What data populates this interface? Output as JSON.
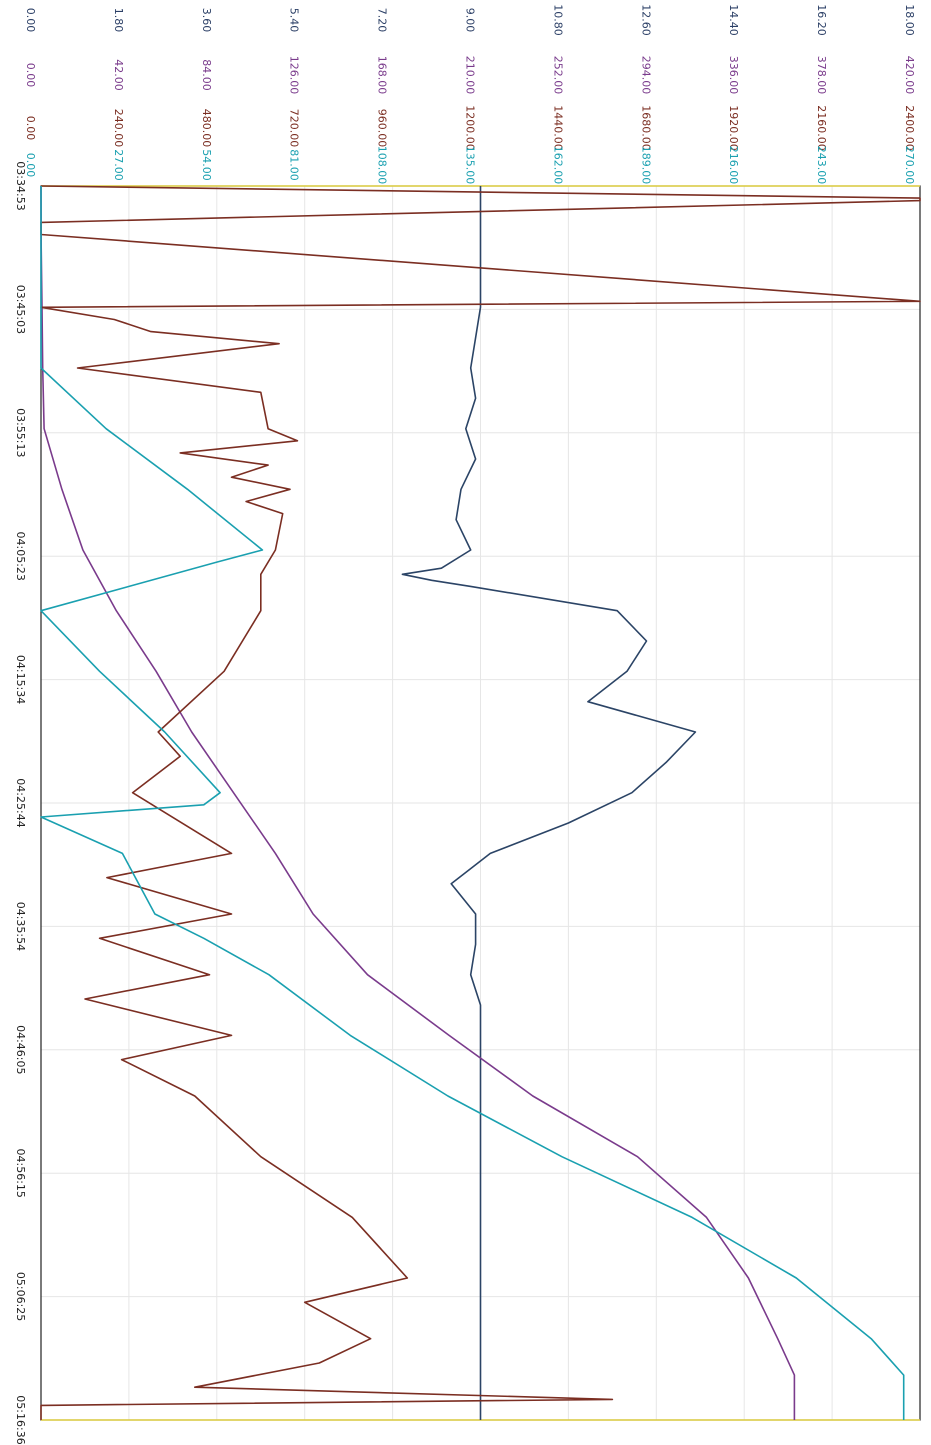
{
  "chart_data": {
    "type": "line",
    "orientation": "rotated 90 degrees clockwise (time axis runs top-to-bottom along the left edge, value axes along the top)",
    "title": "",
    "x_ticks": [
      "03:34:53",
      "03:45:03",
      "03:55:13",
      "04:05:23",
      "04:15:34",
      "04:25:44",
      "04:35:54",
      "04:46:05",
      "04:56:15",
      "05:06:25",
      "05:16:36"
    ],
    "y_axes": [
      {
        "name": "axis1",
        "color": "#2b3f66",
        "ticks": [
          "0.00",
          "1.80",
          "3.60",
          "5.40",
          "7.20",
          "9.00",
          "10.80",
          "12.60",
          "14.40",
          "16.20",
          "18.00"
        ]
      },
      {
        "name": "axis2",
        "color": "#7a3b8c",
        "ticks": [
          "0.00",
          "42.00",
          "84.00",
          "126.00",
          "168.00",
          "210.00",
          "252.00",
          "294.00",
          "336.00",
          "378.00",
          "420.00"
        ]
      },
      {
        "name": "axis3",
        "color": "#7b2e22",
        "ticks": [
          "0.00",
          "240.00",
          "480.00",
          "720.00",
          "960.00",
          "1200.00",
          "1440.00",
          "1680.00",
          "1920.00",
          "2160.00",
          "2400.00"
        ]
      },
      {
        "name": "axis4",
        "color": "#1aa0b0",
        "ticks": [
          "0.00",
          "27.00",
          "54.00",
          "81.00",
          "108.00",
          "135.00",
          "162.00",
          "189.00",
          "216.00",
          "243.00",
          "270.00"
        ]
      }
    ],
    "grid": true,
    "series": [
      {
        "color": "#2b4466",
        "x_min": [
          0,
          10,
          12.5,
          15,
          17.5,
          20,
          22.5,
          25,
          27.5,
          30,
          31.5,
          32,
          32.5,
          33,
          35,
          37.5,
          40,
          42.5,
          45,
          47.5,
          50,
          52.5,
          55,
          57.5,
          60,
          62.5,
          65,
          67.5,
          70,
          75,
          80,
          85,
          90,
          95,
          100,
          101.7
        ],
        "y": [
          9.0,
          9.0,
          8.9,
          8.8,
          8.9,
          8.7,
          8.9,
          8.6,
          8.5,
          8.8,
          8.2,
          7.4,
          8.0,
          8.8,
          11.8,
          12.4,
          12.0,
          11.2,
          13.4,
          12.8,
          12.1,
          10.8,
          9.2,
          8.4,
          8.9,
          8.9,
          8.8,
          9.0,
          9.0,
          9.0,
          9.0,
          9.0,
          9.0,
          9.0,
          9.0,
          9.0
        ]
      },
      {
        "color": "#7a3b8c",
        "x_min": [
          0,
          5,
          10,
          15,
          20,
          25,
          30,
          35,
          40,
          45,
          50,
          55,
          60,
          65,
          70,
          75,
          80,
          85,
          90,
          95,
          98,
          101.7
        ],
        "y": [
          0,
          0.1,
          0.5,
          0.8,
          1.5,
          10,
          20,
          36,
          55,
          72,
          92,
          112,
          130,
          156,
          195,
          235,
          285,
          318,
          338,
          352,
          360,
          360
        ]
      },
      {
        "color": "#7b2e22",
        "x_min": [
          0,
          1,
          1.2,
          3,
          4,
          9.5,
          10,
          11,
          12,
          13,
          15,
          17,
          20,
          21,
          22,
          23,
          24,
          25,
          26,
          27,
          30,
          32,
          35,
          40,
          45,
          47,
          50,
          55,
          57,
          60,
          62,
          65,
          67,
          70,
          72,
          75,
          80,
          85,
          90,
          92,
          95,
          97,
          99,
          100,
          100.5,
          101.7
        ],
        "y": [
          0,
          2400,
          2400,
          0,
          0,
          2400,
          0,
          200,
          300,
          650,
          100,
          600,
          620,
          700,
          380,
          620,
          520,
          680,
          560,
          660,
          640,
          600,
          600,
          500,
          320,
          380,
          250,
          520,
          180,
          520,
          160,
          460,
          120,
          520,
          220,
          420,
          600,
          850,
          1000,
          720,
          900,
          760,
          420,
          1560,
          0,
          0
        ]
      },
      {
        "color": "#1aa0b0",
        "x_min": [
          0,
          10,
          15,
          20,
          25,
          30,
          31,
          35,
          40,
          45,
          50,
          51,
          52,
          55,
          60,
          62,
          65,
          70,
          75,
          80,
          85,
          90,
          95,
          98,
          101.7
        ],
        "y": [
          0,
          0,
          0,
          20,
          45,
          68,
          54,
          0,
          18,
          38,
          55,
          50,
          0,
          25,
          35,
          50,
          70,
          95,
          125,
          160,
          200,
          232,
          255,
          265,
          265
        ]
      }
    ]
  }
}
